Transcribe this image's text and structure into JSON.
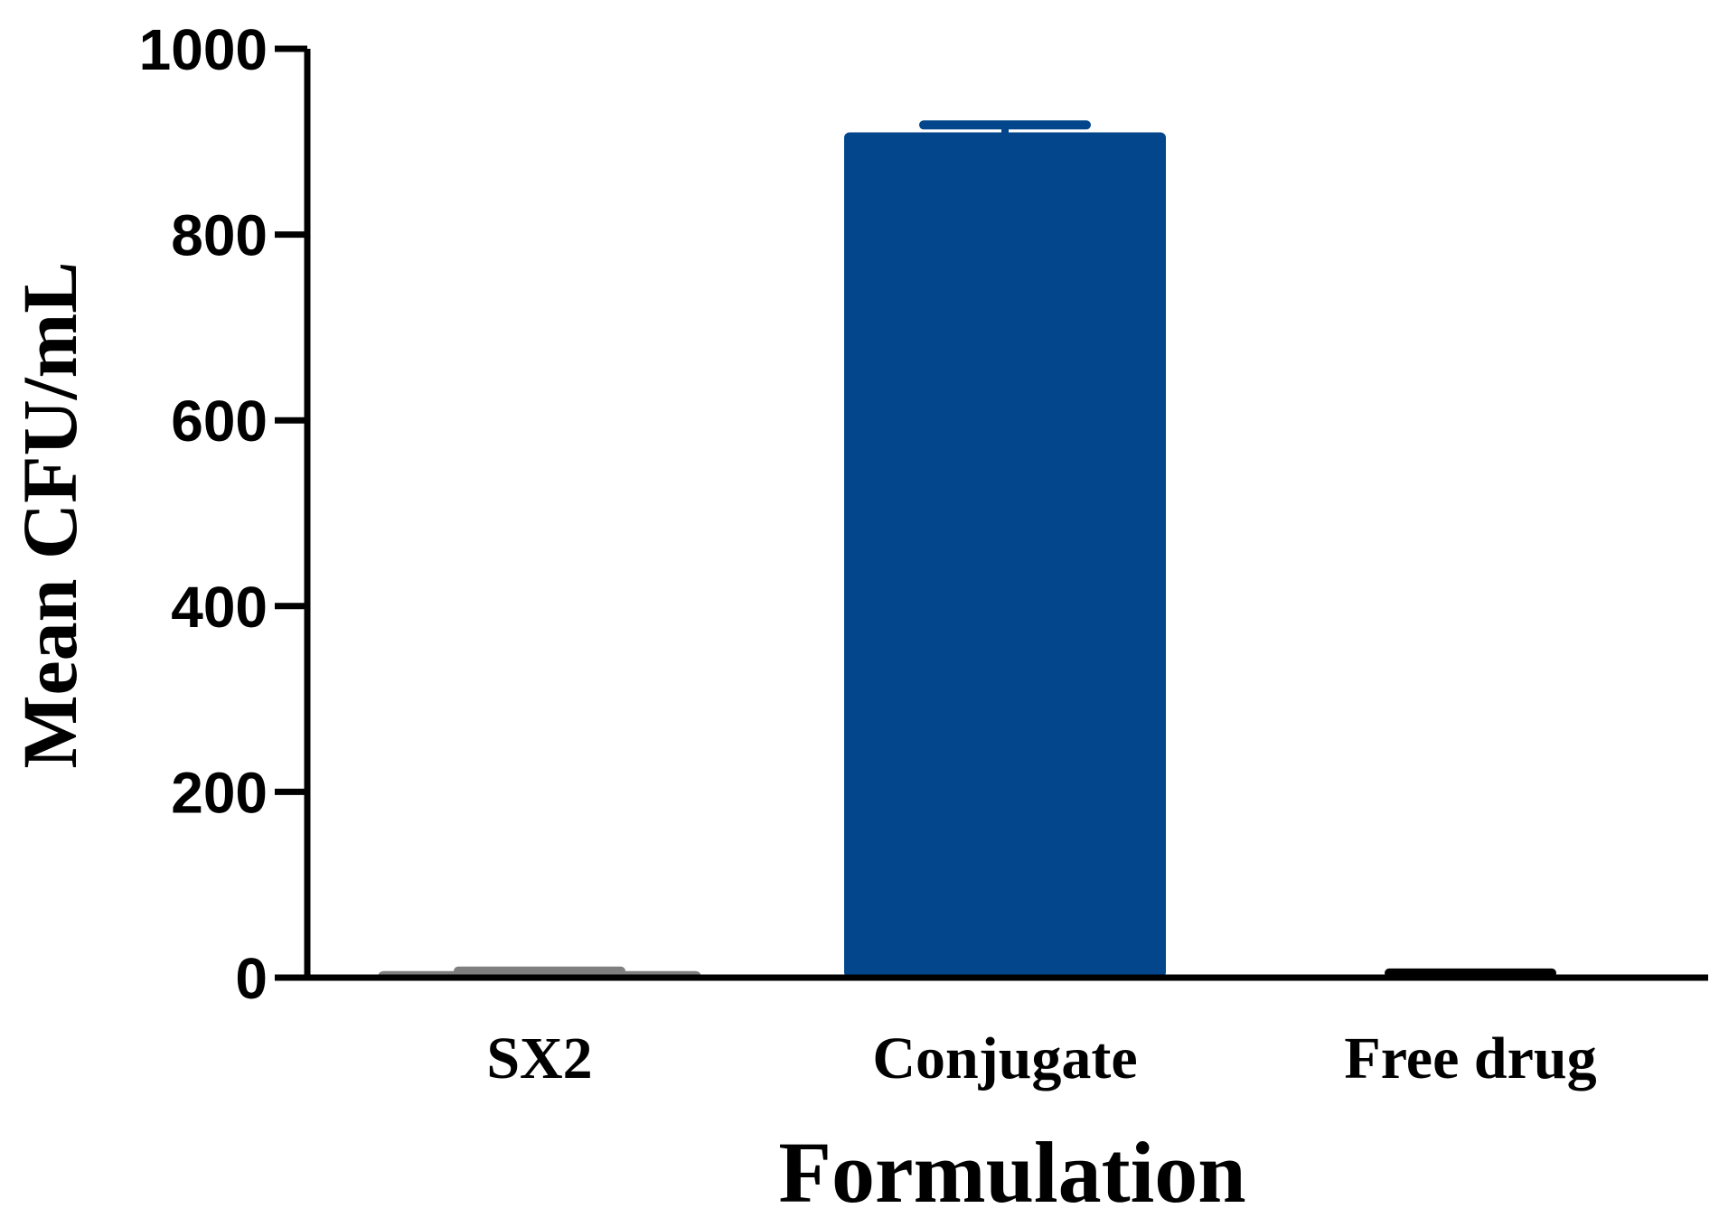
{
  "chart_data": {
    "type": "bar",
    "title": "",
    "xlabel": "Formulation",
    "ylabel": "Mean CFU/mL",
    "categories": [
      "SX2",
      "Conjugate",
      "Free drug"
    ],
    "values": [
      7,
      910,
      3
    ],
    "error_upper": [
      7,
      918,
      5
    ],
    "ylim": [
      0,
      1000
    ],
    "yticks": [
      "0",
      "200",
      "400",
      "600",
      "800",
      "1000"
    ],
    "grid": false,
    "legend": "none",
    "colors": [
      "#7f7f7f",
      "#03468c",
      "#000000"
    ]
  }
}
